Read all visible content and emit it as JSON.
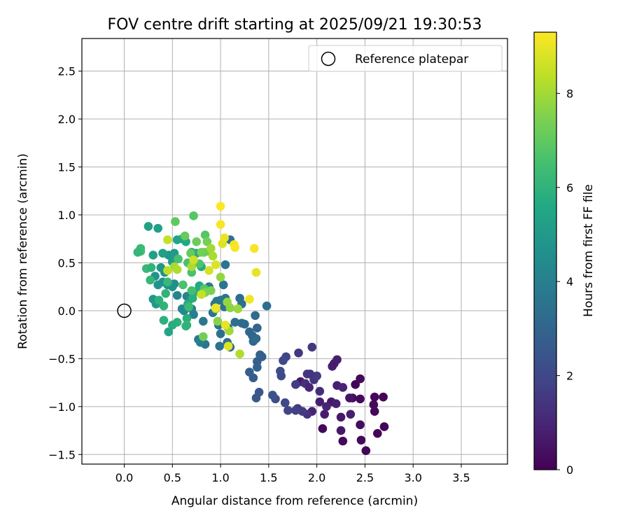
{
  "chart_data": {
    "type": "scatter",
    "title": "FOV centre drift starting at 2025/09/21 19:30:53",
    "xlabel": "Angular distance from reference (arcmin)",
    "ylabel": "Rotation from reference (arcmin)",
    "xlim": [
      -0.44,
      3.98
    ],
    "ylim": [
      -1.6,
      2.84
    ],
    "xticks": [
      "0.0",
      "0.5",
      "1.0",
      "1.5",
      "2.0",
      "2.5",
      "3.0",
      "3.5"
    ],
    "yticks": [
      "−1.5",
      "−1.0",
      "−0.5",
      "0.0",
      "0.5",
      "1.0",
      "1.5",
      "2.0",
      "2.5"
    ],
    "grid": true,
    "legend": {
      "label": "Reference platepar",
      "placement": "top-right"
    },
    "reference_point": {
      "x": 0.0,
      "y": 0.0
    },
    "colorbar": {
      "label": "Hours from first FF file",
      "colormap": "viridis",
      "range": [
        0,
        9.3
      ],
      "ticks": [
        "0",
        "2",
        "4",
        "6",
        "8"
      ]
    },
    "points": [
      {
        "x": 2.51,
        "y": -1.46,
        "h": 0.1
      },
      {
        "x": 2.27,
        "y": -1.36,
        "h": 0.2
      },
      {
        "x": 2.46,
        "y": -1.35,
        "h": 0.2
      },
      {
        "x": 2.63,
        "y": -1.28,
        "h": 0.1
      },
      {
        "x": 2.7,
        "y": -1.21,
        "h": 0.1
      },
      {
        "x": 2.06,
        "y": -1.23,
        "h": 0.2
      },
      {
        "x": 2.25,
        "y": -1.25,
        "h": 0.6
      },
      {
        "x": 2.45,
        "y": -1.19,
        "h": 0.3
      },
      {
        "x": 2.08,
        "y": -1.08,
        "h": 0.7
      },
      {
        "x": 2.25,
        "y": -1.11,
        "h": 0.6
      },
      {
        "x": 2.35,
        "y": -1.08,
        "h": 0.8
      },
      {
        "x": 2.6,
        "y": -1.05,
        "h": 0.2
      },
      {
        "x": 2.59,
        "y": -0.98,
        "h": 0.2
      },
      {
        "x": 2.6,
        "y": -0.9,
        "h": 0.1
      },
      {
        "x": 2.69,
        "y": -0.9,
        "h": 0.1
      },
      {
        "x": 2.37,
        "y": -0.91,
        "h": 0.3
      },
      {
        "x": 2.45,
        "y": -0.92,
        "h": 0.2
      },
      {
        "x": 2.34,
        "y": -0.91,
        "h": 0.5
      },
      {
        "x": 2.4,
        "y": -0.77,
        "h": 0.1
      },
      {
        "x": 2.45,
        "y": -0.71,
        "h": 0.2
      },
      {
        "x": 2.21,
        "y": -0.78,
        "h": 0.8
      },
      {
        "x": 2.27,
        "y": -0.8,
        "h": 0.9
      },
      {
        "x": 2.15,
        "y": -0.95,
        "h": 0.6
      },
      {
        "x": 2.2,
        "y": -0.97,
        "h": 0.8
      },
      {
        "x": 2.03,
        "y": -0.95,
        "h": 0.8
      },
      {
        "x": 2.1,
        "y": -1.0,
        "h": 1.0
      },
      {
        "x": 1.95,
        "y": -1.05,
        "h": 0.9
      },
      {
        "x": 1.9,
        "y": -1.08,
        "h": 1.3
      },
      {
        "x": 1.85,
        "y": -1.05,
        "h": 1.6
      },
      {
        "x": 1.8,
        "y": -1.02,
        "h": 1.5
      },
      {
        "x": 1.83,
        "y": -0.74,
        "h": 0.6
      },
      {
        "x": 1.88,
        "y": -0.76,
        "h": 1.3
      },
      {
        "x": 1.92,
        "y": -0.8,
        "h": 1.0
      },
      {
        "x": 1.97,
        "y": -0.72,
        "h": 1.4
      },
      {
        "x": 2.03,
        "y": -0.84,
        "h": 1.2
      },
      {
        "x": 2.0,
        "y": -0.68,
        "h": 1.6
      },
      {
        "x": 1.9,
        "y": -0.66,
        "h": 1.5
      },
      {
        "x": 1.93,
        "y": -0.66,
        "h": 1.4
      },
      {
        "x": 2.16,
        "y": -0.58,
        "h": 0.8
      },
      {
        "x": 2.18,
        "y": -0.55,
        "h": 0.7
      },
      {
        "x": 2.21,
        "y": -0.51,
        "h": 0.8
      },
      {
        "x": 1.95,
        "y": -0.38,
        "h": 1.5
      },
      {
        "x": 1.81,
        "y": -0.44,
        "h": 1.5
      },
      {
        "x": 1.68,
        "y": -0.48,
        "h": 1.9
      },
      {
        "x": 1.65,
        "y": -0.52,
        "h": 2.0
      },
      {
        "x": 1.62,
        "y": -0.63,
        "h": 2.2
      },
      {
        "x": 1.63,
        "y": -0.68,
        "h": 2.1
      },
      {
        "x": 1.78,
        "y": -0.77,
        "h": 1.7
      },
      {
        "x": 1.67,
        "y": -0.96,
        "h": 2.0
      },
      {
        "x": 1.7,
        "y": -1.04,
        "h": 1.9
      },
      {
        "x": 1.78,
        "y": -1.04,
        "h": 1.8
      },
      {
        "x": 1.57,
        "y": -0.92,
        "h": 2.2
      },
      {
        "x": 1.54,
        "y": -0.88,
        "h": 2.4
      },
      {
        "x": 1.4,
        "y": -0.85,
        "h": 2.5
      },
      {
        "x": 1.37,
        "y": -0.91,
        "h": 2.5
      },
      {
        "x": 1.3,
        "y": -0.64,
        "h": 2.8
      },
      {
        "x": 1.34,
        "y": -0.7,
        "h": 2.7
      },
      {
        "x": 1.38,
        "y": -0.53,
        "h": 2.8
      },
      {
        "x": 1.38,
        "y": -0.59,
        "h": 2.9
      },
      {
        "x": 1.41,
        "y": -0.46,
        "h": 2.9
      },
      {
        "x": 1.43,
        "y": -0.48,
        "h": 2.8
      },
      {
        "x": 1.33,
        "y": -0.26,
        "h": 3.0
      },
      {
        "x": 1.34,
        "y": -0.32,
        "h": 3.1
      },
      {
        "x": 1.37,
        "y": -0.29,
        "h": 3.2
      },
      {
        "x": 1.38,
        "y": -0.18,
        "h": 3.0
      },
      {
        "x": 1.3,
        "y": -0.22,
        "h": 3.1
      },
      {
        "x": 1.36,
        "y": -0.05,
        "h": 3.2
      },
      {
        "x": 1.48,
        "y": 0.05,
        "h": 3.3
      },
      {
        "x": 1.22,
        "y": -0.13,
        "h": 3.3
      },
      {
        "x": 1.25,
        "y": -0.14,
        "h": 3.2
      },
      {
        "x": 1.15,
        "y": -0.12,
        "h": 3.4
      },
      {
        "x": 1.1,
        "y": -0.38,
        "h": 3.3
      },
      {
        "x": 1.07,
        "y": -0.33,
        "h": 3.4
      },
      {
        "x": 0.99,
        "y": -0.37,
        "h": 3.5
      },
      {
        "x": 1.0,
        "y": -0.24,
        "h": 3.4
      },
      {
        "x": 0.98,
        "y": -0.15,
        "h": 3.5
      },
      {
        "x": 1.04,
        "y": 0.04,
        "h": 3.5
      },
      {
        "x": 1.05,
        "y": 0.13,
        "h": 3.6
      },
      {
        "x": 0.96,
        "y": 0.1,
        "h": 3.6
      },
      {
        "x": 1.0,
        "y": 0.11,
        "h": 3.7
      },
      {
        "x": 1.03,
        "y": 0.27,
        "h": 3.6
      },
      {
        "x": 1.05,
        "y": 0.48,
        "h": 3.6
      },
      {
        "x": 1.1,
        "y": 0.74,
        "h": 3.5
      },
      {
        "x": 1.2,
        "y": 0.13,
        "h": 3.3
      },
      {
        "x": 1.22,
        "y": 0.07,
        "h": 3.4
      },
      {
        "x": 1.08,
        "y": -0.18,
        "h": 3.5
      },
      {
        "x": 0.92,
        "y": -0.02,
        "h": 3.6
      },
      {
        "x": 0.94,
        "y": 0.07,
        "h": 3.6
      },
      {
        "x": 0.88,
        "y": 0.25,
        "h": 3.8
      },
      {
        "x": 0.82,
        "y": -0.11,
        "h": 3.7
      },
      {
        "x": 0.84,
        "y": -0.35,
        "h": 3.6
      },
      {
        "x": 0.77,
        "y": -0.3,
        "h": 3.8
      },
      {
        "x": 0.79,
        "y": -0.33,
        "h": 3.9
      },
      {
        "x": 0.72,
        "y": -0.04,
        "h": 3.9
      },
      {
        "x": 0.7,
        "y": 0.02,
        "h": 4.0
      },
      {
        "x": 0.68,
        "y": 0.12,
        "h": 4.1
      },
      {
        "x": 0.65,
        "y": 0.15,
        "h": 4.2
      },
      {
        "x": 0.62,
        "y": 0.0,
        "h": 4.3
      },
      {
        "x": 0.6,
        "y": 0.02,
        "h": 4.4
      },
      {
        "x": 0.55,
        "y": 0.16,
        "h": 4.2
      },
      {
        "x": 0.52,
        "y": 0.28,
        "h": 4.5
      },
      {
        "x": 0.5,
        "y": 0.25,
        "h": 4.6
      },
      {
        "x": 0.45,
        "y": 0.27,
        "h": 4.7
      },
      {
        "x": 0.42,
        "y": 0.4,
        "h": 4.6
      },
      {
        "x": 0.4,
        "y": 0.3,
        "h": 4.6
      },
      {
        "x": 0.35,
        "y": 0.27,
        "h": 4.8
      },
      {
        "x": 0.32,
        "y": 0.36,
        "h": 4.7
      },
      {
        "x": 0.3,
        "y": 0.12,
        "h": 4.9
      },
      {
        "x": 0.33,
        "y": 0.07,
        "h": 5.0
      },
      {
        "x": 0.38,
        "y": 0.45,
        "h": 4.9
      },
      {
        "x": 0.46,
        "y": 0.58,
        "h": 4.8
      },
      {
        "x": 0.48,
        "y": 0.57,
        "h": 4.9
      },
      {
        "x": 0.52,
        "y": 0.6,
        "h": 5.0
      },
      {
        "x": 0.5,
        "y": 0.51,
        "h": 5.1
      },
      {
        "x": 0.4,
        "y": 0.6,
        "h": 5.2
      },
      {
        "x": 0.3,
        "y": 0.58,
        "h": 5.2
      },
      {
        "x": 0.25,
        "y": 0.88,
        "h": 5.3
      },
      {
        "x": 0.35,
        "y": 0.86,
        "h": 5.2
      },
      {
        "x": 0.55,
        "y": 0.74,
        "h": 5.4
      },
      {
        "x": 0.6,
        "y": 0.75,
        "h": 5.5
      },
      {
        "x": 0.64,
        "y": 0.72,
        "h": 5.6
      },
      {
        "x": 0.7,
        "y": 0.61,
        "h": 5.4
      },
      {
        "x": 0.75,
        "y": 0.6,
        "h": 5.6
      },
      {
        "x": 0.8,
        "y": 0.46,
        "h": 5.7
      },
      {
        "x": 0.78,
        "y": 0.26,
        "h": 5.6
      },
      {
        "x": 0.74,
        "y": 0.2,
        "h": 5.7
      },
      {
        "x": 0.71,
        "y": 0.13,
        "h": 5.8
      },
      {
        "x": 0.66,
        "y": 0.07,
        "h": 5.7
      },
      {
        "x": 0.65,
        "y": -0.08,
        "h": 5.8
      },
      {
        "x": 0.55,
        "y": -0.12,
        "h": 5.9
      },
      {
        "x": 0.5,
        "y": -0.15,
        "h": 5.8
      },
      {
        "x": 0.65,
        "y": -0.15,
        "h": 6.1
      },
      {
        "x": 0.64,
        "y": -0.16,
        "h": 6.0
      },
      {
        "x": 0.46,
        "y": -0.22,
        "h": 5.5
      },
      {
        "x": 0.41,
        "y": -0.1,
        "h": 5.9
      },
      {
        "x": 0.41,
        "y": 0.05,
        "h": 6.0
      },
      {
        "x": 0.36,
        "y": 0.11,
        "h": 5.9
      },
      {
        "x": 0.43,
        "y": 0.18,
        "h": 6.0
      },
      {
        "x": 0.45,
        "y": 0.3,
        "h": 6.2
      },
      {
        "x": 0.27,
        "y": 0.32,
        "h": 6.1
      },
      {
        "x": 0.23,
        "y": 0.44,
        "h": 6.2
      },
      {
        "x": 0.28,
        "y": 0.45,
        "h": 6.0
      },
      {
        "x": 0.17,
        "y": 0.65,
        "h": 6.3
      },
      {
        "x": 0.17,
        "y": 0.62,
        "h": 6.4
      },
      {
        "x": 0.14,
        "y": 0.61,
        "h": 6.1
      },
      {
        "x": 0.67,
        "y": 0.04,
        "h": 6.3
      },
      {
        "x": 0.7,
        "y": 0.21,
        "h": 6.5
      },
      {
        "x": 0.61,
        "y": 0.27,
        "h": 6.6
      },
      {
        "x": 0.56,
        "y": 0.54,
        "h": 6.5
      },
      {
        "x": 0.66,
        "y": 0.5,
        "h": 6.6
      },
      {
        "x": 0.7,
        "y": 0.4,
        "h": 6.6
      },
      {
        "x": 0.78,
        "y": 0.49,
        "h": 6.7
      },
      {
        "x": 0.83,
        "y": 0.23,
        "h": 6.8
      },
      {
        "x": 0.84,
        "y": 0.79,
        "h": 6.8
      },
      {
        "x": 0.72,
        "y": 0.99,
        "h": 6.8
      },
      {
        "x": 0.53,
        "y": 0.93,
        "h": 7.0
      },
      {
        "x": 0.63,
        "y": 0.78,
        "h": 7.1
      },
      {
        "x": 0.69,
        "y": 0.6,
        "h": 7.1
      },
      {
        "x": 0.75,
        "y": 0.72,
        "h": 7.2
      },
      {
        "x": 0.86,
        "y": 0.72,
        "h": 7.3
      },
      {
        "x": 0.88,
        "y": 0.62,
        "h": 7.4
      },
      {
        "x": 0.83,
        "y": 0.61,
        "h": 7.2
      },
      {
        "x": 0.8,
        "y": 0.61,
        "h": 7.3
      },
      {
        "x": 0.82,
        "y": -0.27,
        "h": 7.3
      },
      {
        "x": 0.84,
        "y": 0.19,
        "h": 7.5
      },
      {
        "x": 0.9,
        "y": 0.21,
        "h": 7.4
      },
      {
        "x": 0.95,
        "y": 0.02,
        "h": 7.6
      },
      {
        "x": 0.97,
        "y": -0.11,
        "h": 7.6
      },
      {
        "x": 1.0,
        "y": 0.35,
        "h": 7.8
      },
      {
        "x": 1.07,
        "y": 0.09,
        "h": 7.8
      },
      {
        "x": 1.1,
        "y": 0.03,
        "h": 7.7
      },
      {
        "x": 1.18,
        "y": 0.02,
        "h": 7.9
      },
      {
        "x": 1.09,
        "y": -0.21,
        "h": 8.0
      },
      {
        "x": 1.2,
        "y": -0.45,
        "h": 8.2
      },
      {
        "x": 0.9,
        "y": 0.65,
        "h": 8.0
      },
      {
        "x": 0.92,
        "y": 0.57,
        "h": 8.1
      },
      {
        "x": 0.7,
        "y": 0.46,
        "h": 8.1
      },
      {
        "x": 0.52,
        "y": 0.46,
        "h": 8.0
      },
      {
        "x": 0.55,
        "y": 0.43,
        "h": 8.2
      },
      {
        "x": 0.45,
        "y": 0.42,
        "h": 8.4
      },
      {
        "x": 0.45,
        "y": 0.74,
        "h": 8.5
      },
      {
        "x": 0.72,
        "y": 0.53,
        "h": 8.6
      },
      {
        "x": 0.8,
        "y": 0.17,
        "h": 8.5
      },
      {
        "x": 0.88,
        "y": 0.42,
        "h": 8.7
      },
      {
        "x": 0.95,
        "y": 0.48,
        "h": 8.8
      },
      {
        "x": 1.02,
        "y": 0.7,
        "h": 8.8
      },
      {
        "x": 1.04,
        "y": 0.76,
        "h": 9.0
      },
      {
        "x": 1.14,
        "y": 0.69,
        "h": 9.1
      },
      {
        "x": 1.15,
        "y": 0.66,
        "h": 9.2
      },
      {
        "x": 1.35,
        "y": 0.65,
        "h": 9.2
      },
      {
        "x": 1.37,
        "y": 0.4,
        "h": 9.0
      },
      {
        "x": 1.3,
        "y": 0.12,
        "h": 9.1
      },
      {
        "x": 0.95,
        "y": 0.03,
        "h": 9.1
      },
      {
        "x": 1.05,
        "y": -0.15,
        "h": 9.0
      },
      {
        "x": 1.08,
        "y": -0.37,
        "h": 8.9
      },
      {
        "x": 1.0,
        "y": 0.9,
        "h": 9.2
      },
      {
        "x": 1.0,
        "y": 1.09,
        "h": 9.3
      }
    ]
  }
}
